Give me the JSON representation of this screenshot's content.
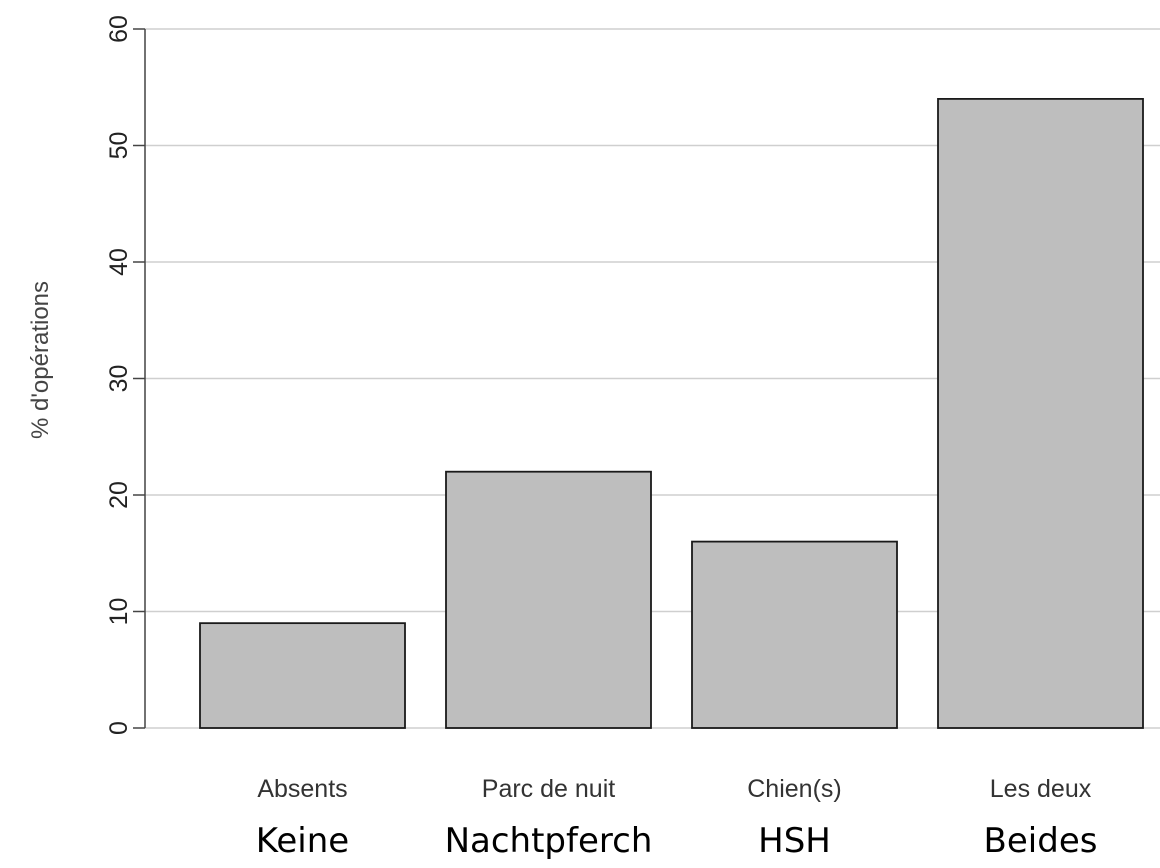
{
  "chart_data": {
    "type": "bar",
    "categories": [
      "Absents",
      "Parc de nuit",
      "Chien(s)",
      "Les deux"
    ],
    "category_translations": [
      "Keine",
      "Nachtpferch",
      "HSH",
      "Beides"
    ],
    "values": [
      9,
      22,
      16,
      54
    ],
    "title": "",
    "xlabel": "",
    "ylabel": "% d'opérations",
    "ylim": [
      0,
      60
    ],
    "yticks": [
      0,
      10,
      20,
      30,
      40,
      50,
      60
    ],
    "grid": true,
    "bar_color": "#bebebe",
    "bar_edge_color": "#1a1a1a",
    "grid_color": "#cfcfcf"
  }
}
